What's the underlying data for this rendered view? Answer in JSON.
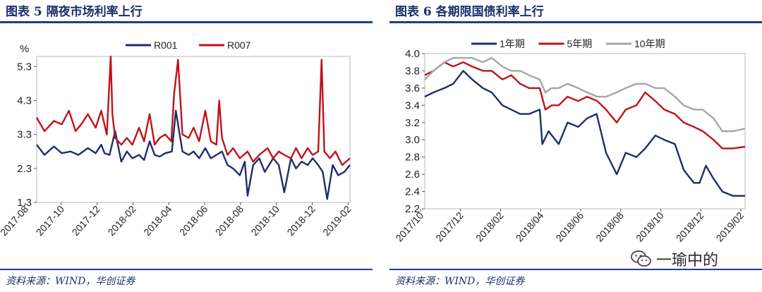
{
  "left": {
    "title": "图表 5   隔夜市场利率上行",
    "source": "资料来源：WIND，华创证券",
    "chart_data": {
      "type": "line",
      "ylabel": "%",
      "ylim": [
        1.3,
        5.6
      ],
      "yticks": [
        "5.3",
        "4.3",
        "3.3",
        "2.3",
        "1.3"
      ],
      "ytick_values": [
        5.3,
        4.3,
        3.3,
        2.3,
        1.3
      ],
      "xlim": [
        "2017-08-01",
        "2019-02-15"
      ],
      "xticks": [
        "2017-08",
        "2017-10",
        "2017-12",
        "2018-02",
        "2018-04",
        "2018-06",
        "2018-08",
        "2018-10",
        "2018-12",
        "2019-02"
      ],
      "legend_position": "top-center",
      "series": [
        {
          "name": "R001",
          "color": "#1f2d6e",
          "x": [
            "2017-08-01",
            "2017-08-15",
            "2017-09-01",
            "2017-09-15",
            "2017-10-01",
            "2017-10-15",
            "2017-11-01",
            "2017-11-15",
            "2017-11-25",
            "2017-12-01",
            "2017-12-10",
            "2017-12-20",
            "2017-12-31",
            "2018-01-10",
            "2018-01-20",
            "2018-02-01",
            "2018-02-10",
            "2018-02-20",
            "2018-03-01",
            "2018-03-10",
            "2018-03-20",
            "2018-04-01",
            "2018-04-08",
            "2018-04-20",
            "2018-05-01",
            "2018-05-10",
            "2018-05-20",
            "2018-05-31",
            "2018-06-10",
            "2018-06-20",
            "2018-06-30",
            "2018-07-10",
            "2018-07-20",
            "2018-08-01",
            "2018-08-10",
            "2018-08-15",
            "2018-08-25",
            "2018-09-05",
            "2018-09-15",
            "2018-09-30",
            "2018-10-10",
            "2018-10-20",
            "2018-11-01",
            "2018-11-10",
            "2018-11-20",
            "2018-12-01",
            "2018-12-10",
            "2018-12-20",
            "2018-12-28",
            "2019-01-05",
            "2019-01-15",
            "2019-01-25",
            "2019-02-05",
            "2019-02-15"
          ],
          "y": [
            3.0,
            2.7,
            2.95,
            2.75,
            2.8,
            2.7,
            2.9,
            2.75,
            3.0,
            2.75,
            2.7,
            3.4,
            2.5,
            2.8,
            2.6,
            2.7,
            2.55,
            3.1,
            2.7,
            2.65,
            2.75,
            2.8,
            4.0,
            2.8,
            2.7,
            2.8,
            2.6,
            2.9,
            2.6,
            2.7,
            2.8,
            2.4,
            2.3,
            2.1,
            2.5,
            1.5,
            2.4,
            2.6,
            2.2,
            2.6,
            2.4,
            1.6,
            2.6,
            2.3,
            2.5,
            2.4,
            2.6,
            2.4,
            2.2,
            1.4,
            2.4,
            2.1,
            2.2,
            2.4
          ]
        },
        {
          "name": "R007",
          "color": "#c0121b",
          "x": [
            "2017-08-01",
            "2017-08-15",
            "2017-09-01",
            "2017-09-15",
            "2017-09-28",
            "2017-10-10",
            "2017-10-20",
            "2017-11-01",
            "2017-11-15",
            "2017-11-25",
            "2017-12-05",
            "2017-12-12",
            "2017-12-15",
            "2017-12-20",
            "2017-12-31",
            "2018-01-10",
            "2018-01-20",
            "2018-02-01",
            "2018-02-10",
            "2018-02-20",
            "2018-03-01",
            "2018-03-10",
            "2018-03-20",
            "2018-03-31",
            "2018-04-05",
            "2018-04-12",
            "2018-04-20",
            "2018-05-01",
            "2018-05-10",
            "2018-05-20",
            "2018-05-31",
            "2018-06-10",
            "2018-06-20",
            "2018-06-25",
            "2018-06-30",
            "2018-07-10",
            "2018-07-20",
            "2018-08-01",
            "2018-08-15",
            "2018-08-25",
            "2018-09-05",
            "2018-09-20",
            "2018-09-30",
            "2018-10-10",
            "2018-10-20",
            "2018-11-01",
            "2018-11-10",
            "2018-11-20",
            "2018-12-01",
            "2018-12-10",
            "2018-12-20",
            "2018-12-26",
            "2018-12-31",
            "2019-01-10",
            "2019-01-20",
            "2019-02-01",
            "2019-02-15"
          ],
          "y": [
            3.8,
            3.4,
            3.7,
            3.6,
            4.0,
            3.4,
            3.6,
            3.9,
            3.5,
            4.0,
            3.3,
            5.6,
            3.9,
            3.2,
            3.0,
            3.2,
            3.0,
            3.5,
            3.1,
            3.9,
            3.0,
            3.2,
            3.3,
            3.1,
            4.5,
            5.5,
            3.3,
            3.2,
            3.5,
            3.1,
            4.0,
            3.1,
            3.0,
            4.3,
            3.2,
            2.7,
            2.9,
            2.6,
            2.8,
            2.5,
            2.7,
            2.9,
            2.6,
            2.8,
            2.7,
            2.6,
            2.9,
            2.6,
            2.9,
            2.7,
            2.8,
            5.5,
            2.8,
            2.6,
            2.8,
            2.4,
            2.6
          ]
        }
      ]
    }
  },
  "right": {
    "title": "图表 6   各期限国债利率上行",
    "source": "资料来源：WIND，华创证券",
    "chart_data": {
      "type": "line",
      "ylim": [
        2.2,
        4.0
      ],
      "yticks": [
        "4.0",
        "3.8",
        "3.6",
        "3.4",
        "3.2",
        "3.0",
        "2.8",
        "2.6",
        "2.4",
        "2.2"
      ],
      "ytick_values": [
        4.0,
        3.8,
        3.6,
        3.4,
        3.2,
        3.0,
        2.8,
        2.6,
        2.4,
        2.2
      ],
      "xlim": [
        "2017-10-01",
        "2019-02-20"
      ],
      "xticks": [
        "2017/10",
        "2017/12",
        "2018/02",
        "2018/04",
        "2018/06",
        "2018/08",
        "2018/10",
        "2018/12",
        "2019/02"
      ],
      "legend_position": "top-center",
      "series": [
        {
          "name": "1年期",
          "color": "#1f2d6e",
          "x": [
            "2017-10-01",
            "2017-10-15",
            "2017-11-01",
            "2017-11-15",
            "2017-12-01",
            "2017-12-15",
            "2018-01-01",
            "2018-01-15",
            "2018-02-01",
            "2018-02-15",
            "2018-03-01",
            "2018-03-15",
            "2018-04-01",
            "2018-04-05",
            "2018-04-15",
            "2018-05-01",
            "2018-05-15",
            "2018-06-01",
            "2018-06-15",
            "2018-06-30",
            "2018-07-15",
            "2018-08-01",
            "2018-08-15",
            "2018-09-01",
            "2018-09-15",
            "2018-10-01",
            "2018-10-15",
            "2018-11-01",
            "2018-11-15",
            "2018-12-01",
            "2018-12-10",
            "2018-12-20",
            "2019-01-01",
            "2019-01-15",
            "2019-02-01",
            "2019-02-20"
          ],
          "y": [
            3.5,
            3.55,
            3.6,
            3.65,
            3.8,
            3.7,
            3.6,
            3.55,
            3.4,
            3.35,
            3.3,
            3.3,
            3.35,
            2.95,
            3.1,
            2.95,
            3.2,
            3.15,
            3.25,
            3.3,
            2.85,
            2.6,
            2.85,
            2.8,
            2.9,
            3.05,
            3.0,
            2.95,
            2.65,
            2.5,
            2.5,
            2.7,
            2.55,
            2.4,
            2.35,
            2.35
          ]
        },
        {
          "name": "5年期",
          "color": "#c0121b",
          "x": [
            "2017-10-01",
            "2017-10-15",
            "2017-11-01",
            "2017-11-15",
            "2017-12-01",
            "2017-12-15",
            "2018-01-01",
            "2018-01-15",
            "2018-02-01",
            "2018-02-15",
            "2018-03-01",
            "2018-03-15",
            "2018-04-01",
            "2018-04-10",
            "2018-04-20",
            "2018-05-01",
            "2018-05-15",
            "2018-06-01",
            "2018-06-15",
            "2018-07-01",
            "2018-07-15",
            "2018-08-01",
            "2018-08-15",
            "2018-09-01",
            "2018-09-15",
            "2018-10-01",
            "2018-10-15",
            "2018-11-01",
            "2018-11-15",
            "2018-12-01",
            "2018-12-15",
            "2019-01-01",
            "2019-01-15",
            "2019-02-01",
            "2019-02-20"
          ],
          "y": [
            3.75,
            3.8,
            3.9,
            3.85,
            3.9,
            3.85,
            3.8,
            3.8,
            3.7,
            3.75,
            3.65,
            3.6,
            3.6,
            3.35,
            3.4,
            3.4,
            3.5,
            3.45,
            3.5,
            3.45,
            3.35,
            3.2,
            3.35,
            3.4,
            3.55,
            3.45,
            3.35,
            3.3,
            3.2,
            3.15,
            3.1,
            3.0,
            2.9,
            2.9,
            2.92
          ]
        },
        {
          "name": "10年期",
          "color": "#a6a6a6",
          "x": [
            "2017-10-01",
            "2017-10-15",
            "2017-11-01",
            "2017-11-15",
            "2017-12-01",
            "2017-12-15",
            "2018-01-01",
            "2018-01-15",
            "2018-02-01",
            "2018-02-15",
            "2018-03-01",
            "2018-03-15",
            "2018-04-01",
            "2018-04-10",
            "2018-04-20",
            "2018-05-01",
            "2018-05-15",
            "2018-06-01",
            "2018-06-15",
            "2018-07-01",
            "2018-07-15",
            "2018-08-01",
            "2018-08-15",
            "2018-09-01",
            "2018-09-15",
            "2018-10-01",
            "2018-10-15",
            "2018-11-01",
            "2018-11-15",
            "2018-12-01",
            "2018-12-15",
            "2019-01-01",
            "2019-01-15",
            "2019-02-01",
            "2019-02-20"
          ],
          "y": [
            3.7,
            3.8,
            3.9,
            3.95,
            3.95,
            3.95,
            3.9,
            3.95,
            3.85,
            3.8,
            3.8,
            3.75,
            3.7,
            3.55,
            3.6,
            3.6,
            3.65,
            3.6,
            3.55,
            3.5,
            3.5,
            3.55,
            3.6,
            3.65,
            3.65,
            3.6,
            3.6,
            3.5,
            3.4,
            3.35,
            3.35,
            3.25,
            3.1,
            3.1,
            3.13
          ]
        }
      ]
    }
  },
  "watermark": {
    "text": "一瑜中的",
    "icon": "wechat-icon"
  }
}
